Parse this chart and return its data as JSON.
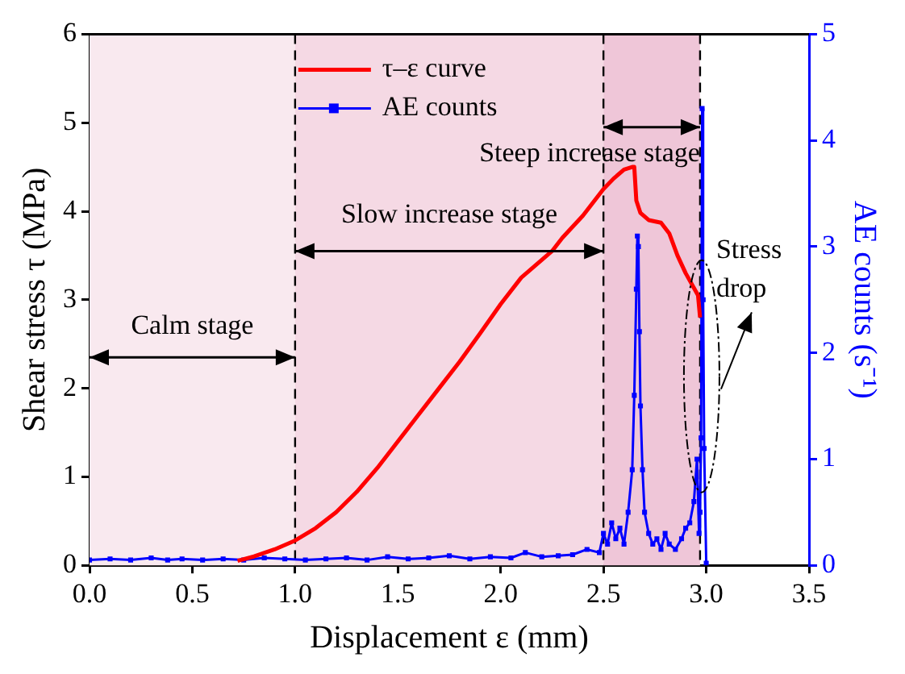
{
  "chart_data": {
    "type": "line",
    "xlabel": "Displacement ε (mm)",
    "ylabel": "Shear stress τ (MPa)",
    "y2label": "AE counts (s⁻¹)",
    "xlim": [
      0,
      3.5
    ],
    "xticks": [
      {
        "value": 0,
        "label": "0.0"
      },
      0.5,
      {
        "value": 1,
        "label": "1.0"
      },
      1.5,
      {
        "value": 2,
        "label": "2.0"
      },
      2.5,
      {
        "value": 3,
        "label": "3.0"
      },
      3.5
    ],
    "ylim": [
      0,
      6
    ],
    "yticks": [
      0,
      1,
      2,
      3,
      4,
      5,
      6
    ],
    "y2lim": [
      0,
      5
    ],
    "y2ticks": [
      0,
      1,
      2,
      3,
      4,
      5
    ],
    "grid": false,
    "legend": "top",
    "series": [
      {
        "name": "τ–ε curve",
        "color": "#ff0000",
        "marker": "none",
        "x": [
          0.72,
          0.8,
          0.9,
          1.0,
          1.1,
          1.2,
          1.3,
          1.4,
          1.5,
          1.6,
          1.7,
          1.8,
          1.9,
          2.0,
          2.1,
          2.2,
          2.25,
          2.3,
          2.4,
          2.5,
          2.55,
          2.6,
          2.64,
          2.65,
          2.66,
          2.68,
          2.72,
          2.78,
          2.82,
          2.86,
          2.9,
          2.96,
          2.97
        ],
        "values": [
          0.05,
          0.1,
          0.18,
          0.28,
          0.42,
          0.6,
          0.83,
          1.1,
          1.4,
          1.7,
          2.0,
          2.3,
          2.62,
          2.95,
          3.25,
          3.45,
          3.55,
          3.7,
          3.95,
          4.25,
          4.37,
          4.47,
          4.5,
          4.5,
          4.12,
          3.98,
          3.9,
          3.87,
          3.75,
          3.5,
          3.3,
          3.05,
          2.8
        ]
      },
      {
        "name": "AE counts",
        "axis": "y2",
        "color": "#0000ff",
        "marker": "square",
        "x": [
          0,
          0.1,
          0.2,
          0.3,
          0.38,
          0.45,
          0.55,
          0.65,
          0.75,
          0.85,
          0.95,
          1.05,
          1.15,
          1.25,
          1.35,
          1.45,
          1.55,
          1.65,
          1.75,
          1.85,
          1.95,
          2.05,
          2.12,
          2.2,
          2.28,
          2.35,
          2.42,
          2.48,
          2.5,
          2.52,
          2.54,
          2.56,
          2.58,
          2.6,
          2.62,
          2.64,
          2.65,
          2.66,
          2.665,
          2.67,
          2.675,
          2.68,
          2.69,
          2.7,
          2.72,
          2.74,
          2.76,
          2.78,
          2.8,
          2.82,
          2.85,
          2.88,
          2.9,
          2.92,
          2.94,
          2.955,
          2.965,
          2.97,
          2.975,
          2.98,
          2.985,
          2.99,
          3.0
        ],
        "values": [
          0.05,
          0.06,
          0.05,
          0.07,
          0.05,
          0.06,
          0.05,
          0.06,
          0.05,
          0.07,
          0.06,
          0.05,
          0.06,
          0.07,
          0.05,
          0.08,
          0.06,
          0.07,
          0.09,
          0.06,
          0.08,
          0.07,
          0.12,
          0.08,
          0.09,
          0.1,
          0.15,
          0.12,
          0.3,
          0.2,
          0.4,
          0.25,
          0.35,
          0.2,
          0.5,
          0.9,
          1.6,
          2.6,
          3.1,
          3.0,
          2.2,
          1.5,
          0.9,
          0.5,
          0.3,
          0.2,
          0.25,
          0.15,
          0.3,
          0.2,
          0.15,
          0.25,
          0.35,
          0.4,
          0.6,
          1.0,
          0.3,
          0.5,
          1.2,
          4.3,
          2.5,
          1.1,
          0.02
        ]
      }
    ],
    "bands": [
      {
        "axis": "x",
        "from": 0,
        "to": 1,
        "label": "Calm stage",
        "color": "#f9e9ef"
      },
      {
        "axis": "x",
        "from": 1,
        "to": 2.5,
        "label": "Slow increase stage",
        "color": "#f5d9e4"
      },
      {
        "axis": "x",
        "from": 2.5,
        "to": 2.97,
        "label": "Steep increase stage",
        "color": "#efc6d8"
      }
    ],
    "ref_lines": [
      {
        "axis": "x",
        "value": 1,
        "color": "#000000",
        "line_style": "dashed"
      },
      {
        "axis": "x",
        "value": 2.5,
        "color": "#000000",
        "line_style": "dashed"
      },
      {
        "axis": "x",
        "value": 2.97,
        "color": "#000000",
        "line_style": "dashed"
      }
    ],
    "annotations": [
      {
        "text": "Stress drop",
        "x": 2.97,
        "y": 2.5
      }
    ]
  }
}
